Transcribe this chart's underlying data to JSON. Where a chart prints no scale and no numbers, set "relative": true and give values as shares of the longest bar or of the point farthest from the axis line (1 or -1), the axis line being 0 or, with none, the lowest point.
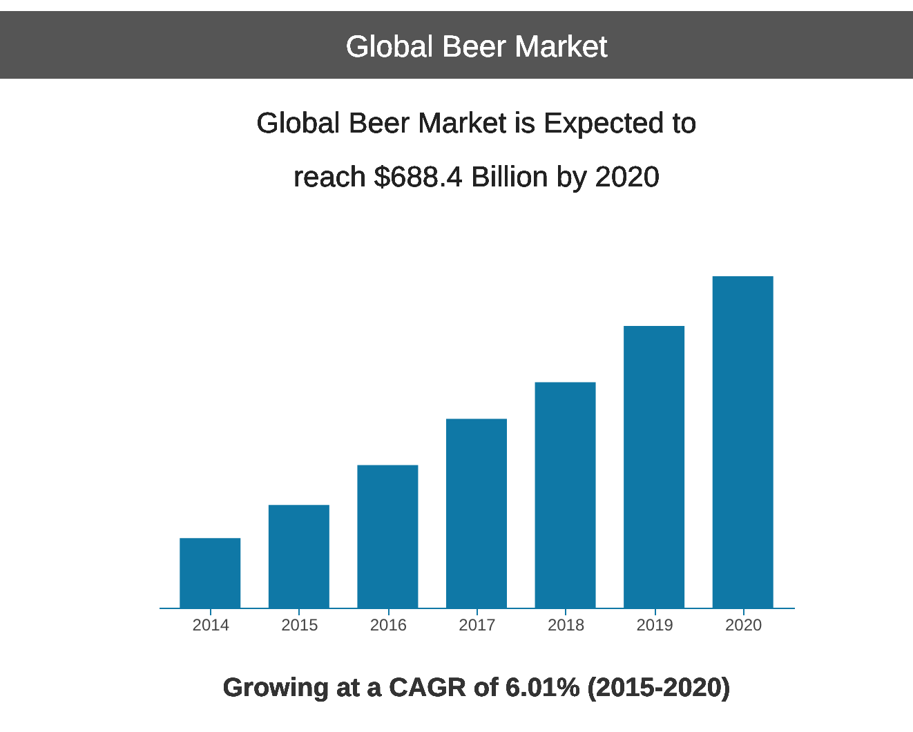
{
  "chart_data": {
    "type": "bar",
    "title": "Global Beer Market",
    "subtitle": "Global Beer Market is Expected to reach $688.4 Billion by 2020",
    "categories": [
      "2014",
      "2015",
      "2016",
      "2017",
      "2018",
      "2019",
      "2020"
    ],
    "values": [
      0.21,
      0.31,
      0.43,
      0.57,
      0.68,
      0.85,
      1
    ],
    "color": "#0f78a6",
    "relative": true,
    "grid": false,
    "annotations": [
      "Growing at a CAGR of 6.01% (2015-2020)"
    ]
  }
}
